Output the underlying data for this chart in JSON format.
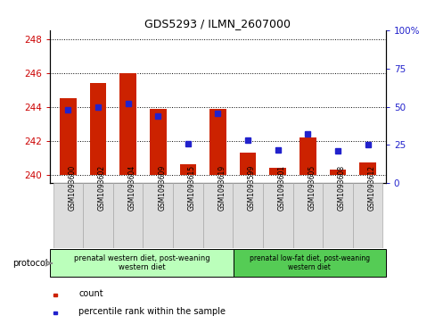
{
  "title": "GDS5293 / ILMN_2607000",
  "samples": [
    "GSM1093600",
    "GSM1093602",
    "GSM1093604",
    "GSM1093609",
    "GSM1093615",
    "GSM1093619",
    "GSM1093599",
    "GSM1093601",
    "GSM1093605",
    "GSM1093608",
    "GSM1093612"
  ],
  "bar_values": [
    244.5,
    245.4,
    246.0,
    243.9,
    240.6,
    243.9,
    241.3,
    240.4,
    242.2,
    240.3,
    240.7
  ],
  "percentile_values": [
    48,
    50,
    52,
    44,
    26,
    46,
    28,
    22,
    32,
    21,
    25
  ],
  "ylim_left": [
    239.5,
    248.5
  ],
  "ylim_right": [
    0,
    100
  ],
  "yticks_left": [
    240,
    242,
    244,
    246,
    248
  ],
  "yticks_right": [
    0,
    25,
    50,
    75,
    100
  ],
  "bar_color": "#cc2200",
  "dot_color": "#2222cc",
  "group1_label": "prenatal western diet, post-weaning\nwestern diet",
  "group2_label": "prenatal low-fat diet, post-weaning\nwestern diet",
  "group1_color": "#bbffbb",
  "group2_color": "#55cc55",
  "group1_samples": 6,
  "group2_samples": 5,
  "legend_count": "count",
  "legend_percentile": "percentile rank within the sample",
  "protocol_label": "protocol",
  "left_tick_color": "#cc0000",
  "right_tick_color": "#2222cc",
  "base_value": 240.0,
  "bar_bottom": 240.0,
  "xtick_bg": "#cccccc",
  "title_fontsize": 9
}
